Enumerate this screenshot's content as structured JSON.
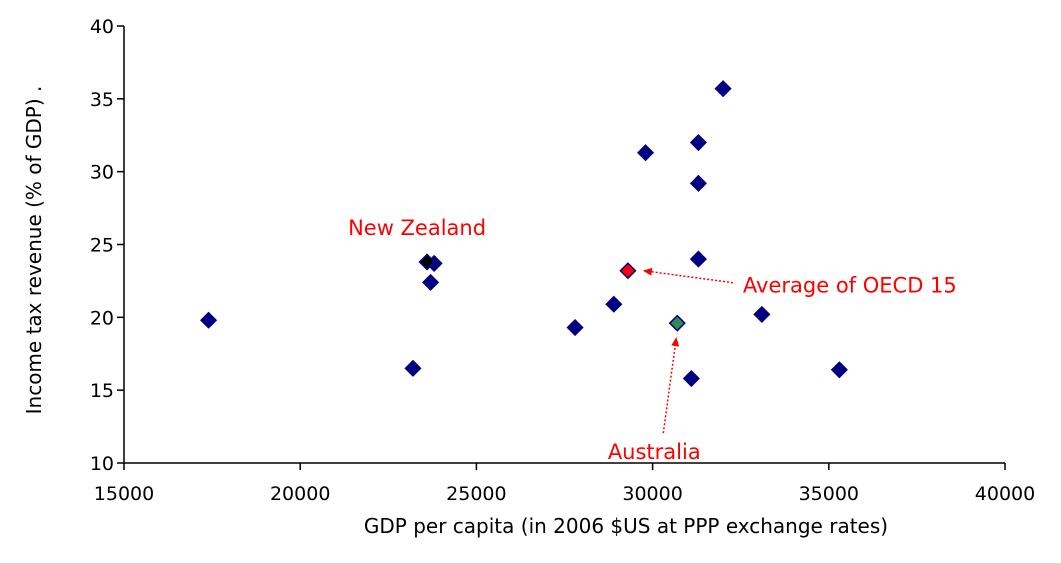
{
  "chart_data": {
    "type": "scatter",
    "title": "",
    "xlabel": "GDP per capita (in 2006 $US at PPP exchange rates)",
    "ylabel": "Income tax revenue (% of GDP)  .",
    "xlim": [
      15000,
      40000
    ],
    "ylim": [
      10,
      40
    ],
    "x_ticks": [
      15000,
      20000,
      25000,
      30000,
      35000,
      40000
    ],
    "y_ticks": [
      10,
      15,
      20,
      25,
      30,
      35,
      40
    ],
    "grid": false,
    "legend": "none",
    "points": [
      {
        "x": 17400,
        "y": 19.8,
        "color": "#000080"
      },
      {
        "x": 23200,
        "y": 16.5,
        "color": "#000080"
      },
      {
        "x": 23700,
        "y": 22.4,
        "color": "#000080"
      },
      {
        "x": 23800,
        "y": 23.7,
        "color": "#000080"
      },
      {
        "x": 23600,
        "y": 23.8,
        "color": "#000000"
      },
      {
        "x": 27800,
        "y": 19.3,
        "color": "#000080"
      },
      {
        "x": 28900,
        "y": 20.9,
        "color": "#000080"
      },
      {
        "x": 29300,
        "y": 23.2,
        "color": "#ff0000"
      },
      {
        "x": 29800,
        "y": 31.3,
        "color": "#000080"
      },
      {
        "x": 30700,
        "y": 19.6,
        "color": "#2e8b57"
      },
      {
        "x": 31100,
        "y": 15.8,
        "color": "#000080"
      },
      {
        "x": 31300,
        "y": 32.0,
        "color": "#000080"
      },
      {
        "x": 31300,
        "y": 29.2,
        "color": "#000080"
      },
      {
        "x": 31300,
        "y": 24.0,
        "color": "#000080"
      },
      {
        "x": 32000,
        "y": 35.7,
        "color": "#000080"
      },
      {
        "x": 33100,
        "y": 20.2,
        "color": "#000080"
      },
      {
        "x": 35300,
        "y": 16.4,
        "color": "#000080"
      }
    ],
    "annotations": [
      {
        "text": "New Zealand",
        "x": 23600,
        "y": 23.8,
        "color": "#ff0000"
      },
      {
        "text": "Average of OECD 15",
        "x": 29300,
        "y": 23.2,
        "color": "#ff0000"
      },
      {
        "text": "Australia",
        "x": 30700,
        "y": 19.6,
        "color": "#ff0000"
      }
    ]
  }
}
